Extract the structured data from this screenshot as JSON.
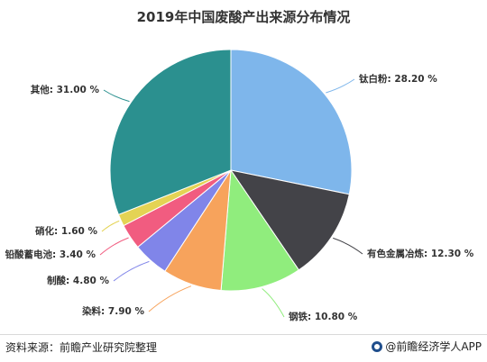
{
  "chart_data": {
    "type": "pie",
    "title": "2019年中国废酸产出来源分布情况",
    "slices": [
      {
        "label": "钛白粉",
        "value": 28.2,
        "display": "钛白粉: 28.20 %",
        "color": "#7eb6eb"
      },
      {
        "label": "有色金属冶炼",
        "value": 12.3,
        "display": "有色金属冶炼: 12.30 %",
        "color": "#434348"
      },
      {
        "label": "钢铁",
        "value": 10.8,
        "display": "钢铁: 10.80 %",
        "color": "#90ed7d"
      },
      {
        "label": "染料",
        "value": 7.9,
        "display": "染料: 7.90 %",
        "color": "#f7a35c"
      },
      {
        "label": "制酸",
        "value": 4.8,
        "display": "制酸: 4.80 %",
        "color": "#8085e9"
      },
      {
        "label": "铅酸蓄电池",
        "value": 3.4,
        "display": "铅酸蓄电池: 3.40 %",
        "color": "#f15c80"
      },
      {
        "label": "硝化",
        "value": 1.6,
        "display": "硝化: 1.60 %",
        "color": "#e4d354"
      },
      {
        "label": "其他",
        "value": 31.0,
        "display": "其他: 31.00 %",
        "color": "#2b908f"
      }
    ],
    "start": "12 o'clock",
    "direction": "clockwise",
    "legend": "none"
  },
  "footer": {
    "source": "资料来源：前瞻产业研究院整理",
    "brand": "@前瞻经济学人APP"
  }
}
